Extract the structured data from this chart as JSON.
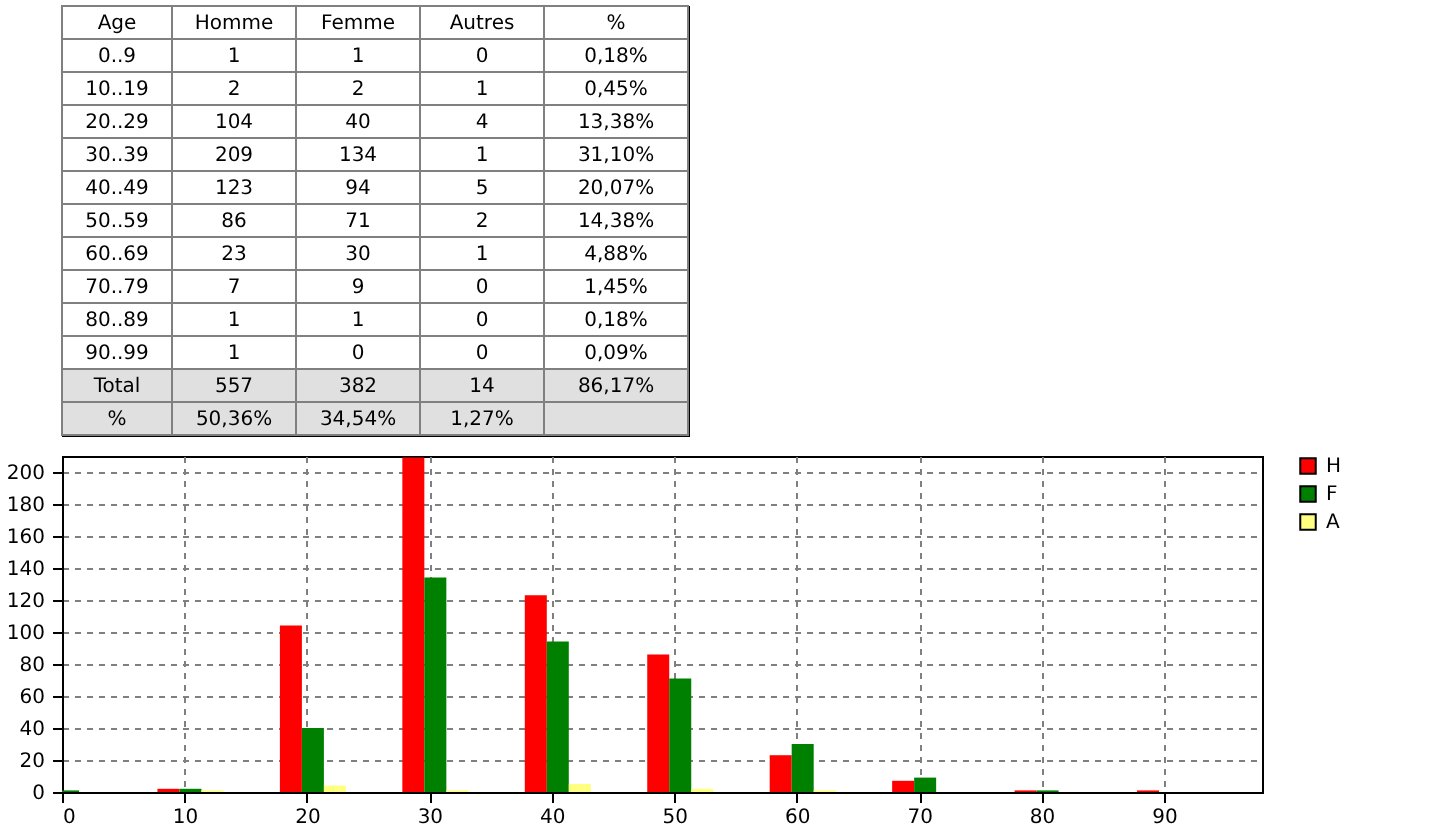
{
  "chart_data": [
    {
      "type": "other",
      "ylabel": "Age",
      "categories": [
        "0..9",
        "10..19",
        "20..29",
        "30..39",
        "40..49",
        "50..59",
        "60..69",
        "70..79",
        "80..89",
        "90..99",
        "Total",
        "%"
      ],
      "series": [
        {
          "name": "Homme",
          "colors": [
            "#ffffff",
            "#ffffff",
            "#ffffff",
            "#ffffff",
            "#ffffff",
            "#ffffff",
            "#ffffff",
            "#ffffff",
            "#ffffff",
            "#ffffff",
            "#e0e0e0",
            "#e0e0e0"
          ],
          "values": [
            1,
            2,
            104,
            209,
            123,
            86,
            23,
            7,
            1,
            1,
            557,
            50.36
          ],
          "value_labels": [
            "1",
            "2",
            "104",
            "209",
            "123",
            "86",
            "23",
            "7",
            "1",
            "1",
            "557",
            "50,36%"
          ]
        },
        {
          "name": "Femme",
          "colors": [
            "#ffffff",
            "#ffffff",
            "#ffffff",
            "#ffffff",
            "#ffffff",
            "#ffffff",
            "#ffffff",
            "#ffffff",
            "#ffffff",
            "#ffffff",
            "#e0e0e0",
            "#e0e0e0"
          ],
          "values": [
            1,
            2,
            40,
            134,
            94,
            71,
            30,
            9,
            1,
            0,
            382,
            34.54
          ],
          "value_labels": [
            "1",
            "2",
            "40",
            "134",
            "94",
            "71",
            "30",
            "9",
            "1",
            "0",
            "382",
            "34,54%"
          ]
        },
        {
          "name": "Autres",
          "colors": [
            "#ffffff",
            "#ffffff",
            "#ffffff",
            "#ffffff",
            "#ffffff",
            "#ffffff",
            "#ffffff",
            "#ffffff",
            "#ffffff",
            "#ffffff",
            "#e0e0e0",
            "#e0e0e0"
          ],
          "values": [
            0,
            1,
            4,
            1,
            5,
            2,
            1,
            0,
            0,
            0,
            14,
            1.27
          ],
          "value_labels": [
            "0",
            "1",
            "4",
            "1",
            "5",
            "2",
            "1",
            "0",
            "0",
            "0",
            "14",
            "1,27%"
          ]
        },
        {
          "name": "%",
          "colors": [
            "#ffffff",
            "#ffffff",
            "#ffffff",
            "#ffffff",
            "#ffffff",
            "#ffffff",
            "#ffffff",
            "#ffffff",
            "#ffffff",
            "#ffffff",
            "#e0e0e0",
            "#e0e0e0"
          ],
          "values": [
            0.18,
            0.45,
            13.38,
            31.1,
            20.07,
            14.38,
            4.88,
            1.45,
            0.18,
            0.09,
            86.17,
            null
          ],
          "value_labels": [
            "0,18%",
            "0,45%",
            "13,38%",
            "31,10%",
            "20,07%",
            "14,38%",
            "4,88%",
            "1,45%",
            "0,18%",
            "0,09%",
            "86,17%",
            null
          ]
        }
      ]
    },
    {
      "type": "bar",
      "x": [
        0,
        10,
        20,
        30,
        40,
        50,
        60,
        70,
        80,
        90
      ],
      "series": [
        {
          "name": "H",
          "color": "#ff0000",
          "values": [
            1,
            2,
            104,
            209,
            123,
            86,
            23,
            7,
            1,
            1
          ]
        },
        {
          "name": "F",
          "color": "#008000",
          "values": [
            1,
            2,
            40,
            134,
            94,
            71,
            30,
            9,
            1,
            0
          ]
        },
        {
          "name": "A",
          "color": "#ffff80",
          "values": [
            0,
            1,
            4,
            1,
            5,
            2,
            1,
            0,
            0,
            0
          ]
        }
      ],
      "xlim": [
        0,
        98
      ],
      "xticks": [
        0,
        10,
        20,
        30,
        40,
        50,
        60,
        70,
        80,
        90
      ],
      "ylim": [
        0,
        210
      ],
      "yticks": [
        0,
        20,
        40,
        60,
        80,
        100,
        120,
        140,
        160,
        180,
        200
      ],
      "grid": true,
      "legend": "right"
    }
  ]
}
